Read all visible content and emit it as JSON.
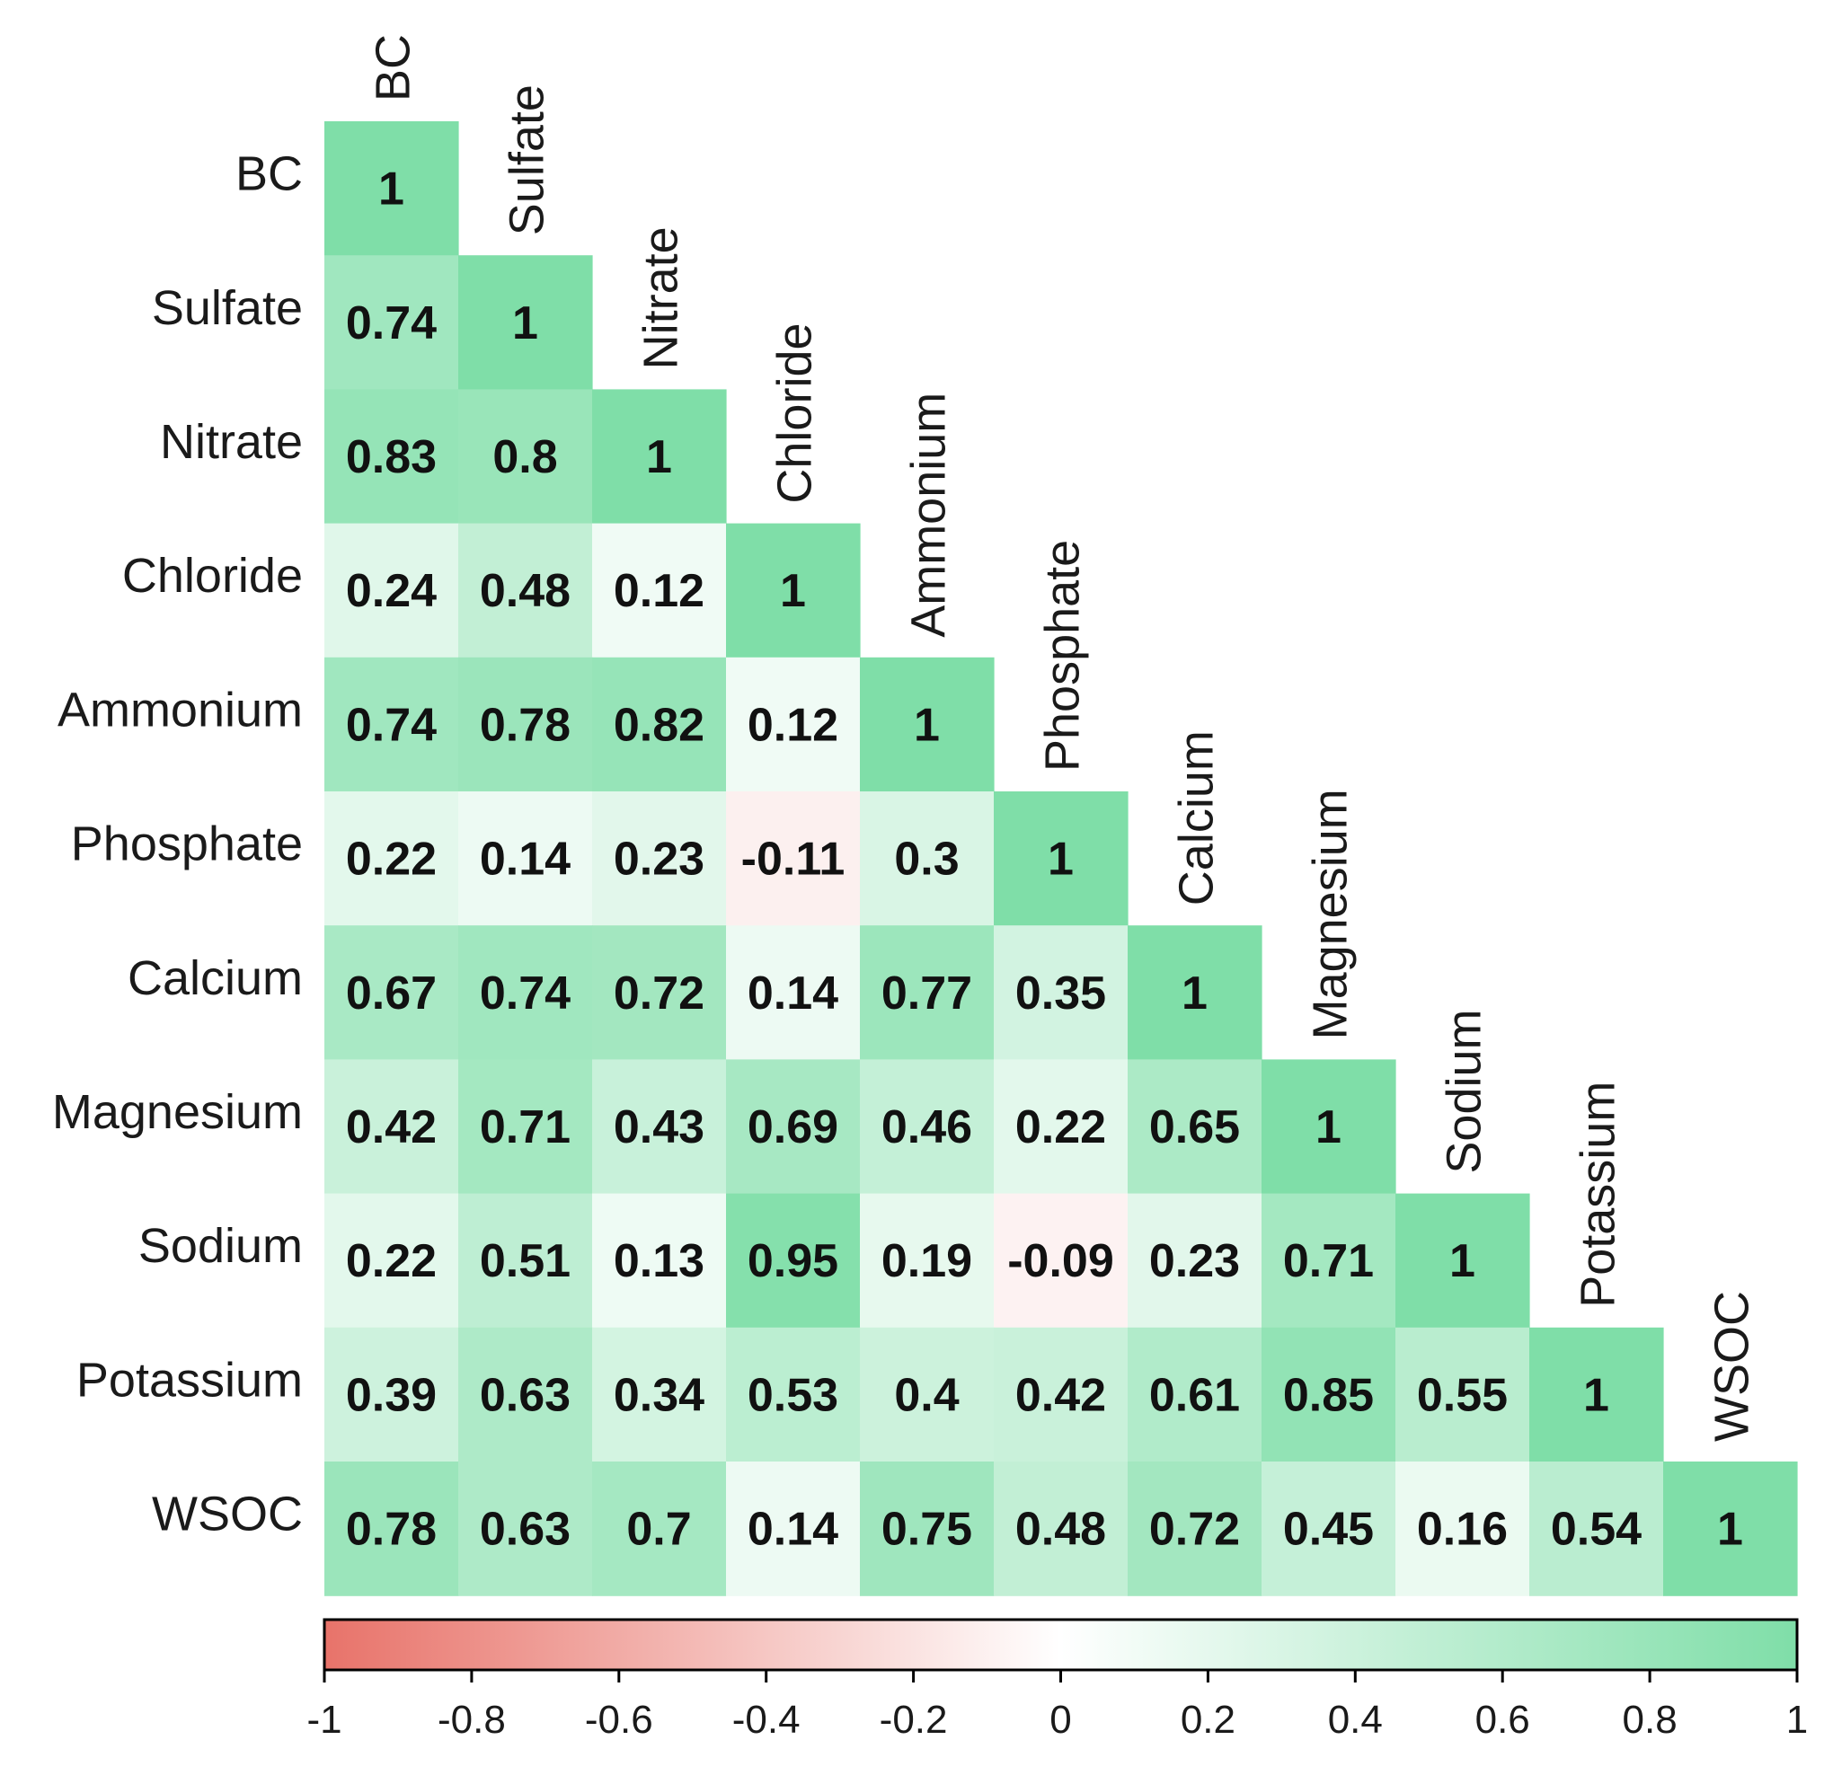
{
  "chart_data": {
    "type": "heatmap",
    "subtype": "lower-triangular correlation matrix",
    "title": "",
    "variables": [
      "BC",
      "Sulfate",
      "Nitrate",
      "Chloride",
      "Ammonium",
      "Phosphate",
      "Calcium",
      "Magnesium",
      "Sodium",
      "Potassium",
      "WSOC"
    ],
    "matrix": [
      [
        "1"
      ],
      [
        "0.74",
        "1"
      ],
      [
        "0.83",
        "0.8",
        "1"
      ],
      [
        "0.24",
        "0.48",
        "0.12",
        "1"
      ],
      [
        "0.74",
        "0.78",
        "0.82",
        "0.12",
        "1"
      ],
      [
        "0.22",
        "0.14",
        "0.23",
        "-0.11",
        "0.3",
        "1"
      ],
      [
        "0.67",
        "0.74",
        "0.72",
        "0.14",
        "0.77",
        "0.35",
        "1"
      ],
      [
        "0.42",
        "0.71",
        "0.43",
        "0.69",
        "0.46",
        "0.22",
        "0.65",
        "1"
      ],
      [
        "0.22",
        "0.51",
        "0.13",
        "0.95",
        "0.19",
        "-0.09",
        "0.23",
        "0.71",
        "1"
      ],
      [
        "0.39",
        "0.63",
        "0.34",
        "0.53",
        "0.4",
        "0.42",
        "0.61",
        "0.85",
        "0.55",
        "1"
      ],
      [
        "0.78",
        "0.63",
        "0.7",
        "0.14",
        "0.75",
        "0.48",
        "0.72",
        "0.45",
        "0.16",
        "0.54",
        "1"
      ]
    ],
    "colorbar": {
      "min": -1,
      "max": 1,
      "ticks": [
        "-1",
        "-0.8",
        "-0.6",
        "-0.4",
        "-0.2",
        "0",
        "0.2",
        "0.4",
        "0.6",
        "0.8",
        "1"
      ],
      "low_color": "#e8736a",
      "mid_color": "#ffffff",
      "high_color": "#7fdea8"
    }
  }
}
